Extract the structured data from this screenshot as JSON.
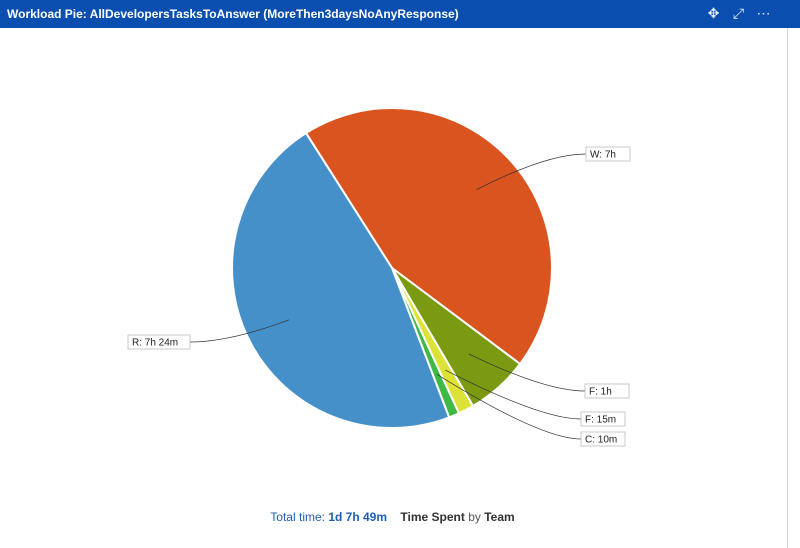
{
  "header": {
    "title": "Workload Pie: AllDevelopersTasksToAnswer (MoreThen3daysNoAnyResponse)",
    "icons": [
      "move-icon",
      "expand-icon",
      "more-icon"
    ]
  },
  "chart_data": {
    "type": "pie",
    "slices": [
      {
        "label": "W: 7h",
        "hours": 7,
        "color": "#d9541e"
      },
      {
        "label": "F: 1h",
        "hours": 1,
        "color": "#7a9a12"
      },
      {
        "label": "F: 15m",
        "hours": 0.25,
        "color": "#dde236"
      },
      {
        "label": "C: 10m",
        "hours": 0.1667,
        "color": "#3fb845"
      },
      {
        "label": "R: 7h 24m",
        "hours": 7.4,
        "color": "#4690ca"
      }
    ]
  },
  "footer": {
    "total_label": "Total time:",
    "total_value": "1d 7h 49m",
    "metric": "Time Spent",
    "by": "by",
    "group": "Team"
  }
}
